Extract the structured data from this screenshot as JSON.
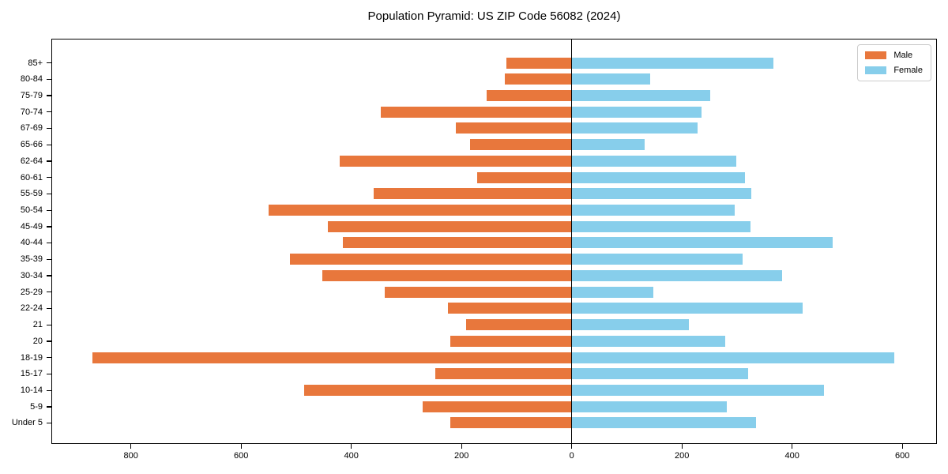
{
  "title": "Population Pyramid: US ZIP Code 56082 (2024)",
  "colors": {
    "male": "#E8773C",
    "female": "#87CEEB",
    "axis": "#000000",
    "background": "#FFFFFF",
    "legend_border": "#CCCCCC"
  },
  "legend": {
    "position": "upper right",
    "entries": [
      {
        "label": "Male",
        "color": "#E8773C"
      },
      {
        "label": "Female",
        "color": "#87CEEB"
      }
    ]
  },
  "chart_data": {
    "type": "bar",
    "variant": "population-pyramid",
    "title": "Population Pyramid: US ZIP Code 56082 (2024)",
    "xlabel": "",
    "ylabel": "",
    "grid": false,
    "zero_line": true,
    "xlim": [
      -943,
      660
    ],
    "x_tick_values": [
      -800,
      -600,
      -400,
      -200,
      0,
      200,
      400,
      600
    ],
    "x_tick_labels": [
      "800",
      "600",
      "400",
      "200",
      "0",
      "200",
      "400",
      "600"
    ],
    "categories": [
      "85+",
      "80-84",
      "75-79",
      "70-74",
      "67-69",
      "65-66",
      "62-64",
      "60-61",
      "55-59",
      "50-54",
      "45-49",
      "40-44",
      "35-39",
      "30-34",
      "25-29",
      "22-24",
      "21",
      "20",
      "18-19",
      "15-17",
      "10-14",
      "5-9",
      "Under 5"
    ],
    "series": [
      {
        "name": "Male",
        "side": "left",
        "color": "#E8773C",
        "values": [
          118,
          121,
          154,
          346,
          211,
          184,
          421,
          171,
          359,
          550,
          442,
          415,
          512,
          452,
          340,
          225,
          191,
          221,
          870,
          248,
          486,
          270,
          221
        ]
      },
      {
        "name": "Female",
        "side": "right",
        "color": "#87CEEB",
        "values": [
          366,
          143,
          251,
          235,
          228,
          132,
          299,
          315,
          326,
          296,
          325,
          473,
          310,
          382,
          148,
          419,
          212,
          278,
          586,
          320,
          458,
          282,
          335
        ]
      }
    ]
  }
}
